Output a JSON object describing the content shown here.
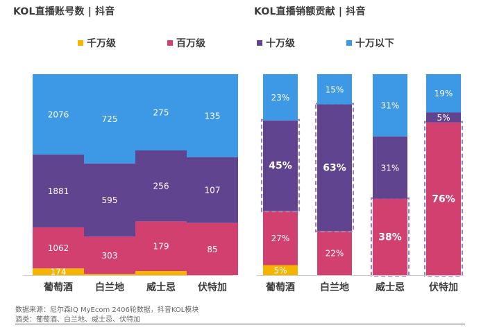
{
  "colors": {
    "qianwan": "#f5b400",
    "baiwan": "#d1406f",
    "shiwan": "#61448f",
    "shiwan_below": "#3d99e6"
  },
  "legend": {
    "left": [
      {
        "label": "千万级",
        "color": "#f5b400"
      },
      {
        "label": "百万级",
        "color": "#d1406f"
      }
    ],
    "right": [
      {
        "label": "十万级",
        "color": "#61448f"
      },
      {
        "label": "十万以下",
        "color": "#3d99e6"
      }
    ]
  },
  "chart_data": [
    {
      "type": "bar",
      "stacked": true,
      "normalized": true,
      "title": "KOL直播账号数 | 抖音",
      "categories": [
        "葡萄酒",
        "白兰地",
        "威士忌",
        "伏特加"
      ],
      "series": [
        {
          "name": "千万级",
          "values": [
            174,
            10,
            15,
            0
          ],
          "labels": [
            "174",
            "",
            "",
            ""
          ]
        },
        {
          "name": "百万级",
          "values": [
            1062,
            303,
            179,
            85
          ],
          "labels": [
            "1062",
            "303",
            "179",
            "85"
          ]
        },
        {
          "name": "十万级",
          "values": [
            1881,
            595,
            256,
            107
          ],
          "labels": [
            "1881",
            "595",
            "256",
            "107"
          ]
        },
        {
          "name": "十万以下",
          "values": [
            2076,
            725,
            275,
            135
          ],
          "labels": [
            "2076",
            "725",
            "275",
            "135"
          ]
        }
      ]
    },
    {
      "type": "bar",
      "stacked": true,
      "normalized": true,
      "title": "KOL直播销额贡献 | 抖音",
      "categories": [
        "葡萄酒",
        "白兰地",
        "威士忌",
        "伏特加"
      ],
      "series": [
        {
          "name": "千万级",
          "values": [
            5,
            0,
            0,
            0
          ],
          "labels": [
            "5%",
            "",
            "",
            ""
          ]
        },
        {
          "name": "百万级",
          "values": [
            27,
            22,
            38,
            76
          ],
          "labels": [
            "27%",
            "22%",
            "38%",
            "76%"
          ]
        },
        {
          "name": "十万级",
          "values": [
            45,
            63,
            31,
            5
          ],
          "labels": [
            "45%",
            "63%",
            "31%",
            "5%"
          ]
        },
        {
          "name": "十万以下",
          "values": [
            23,
            15,
            31,
            19
          ],
          "labels": [
            "23%",
            "15%",
            "31%",
            "19%"
          ]
        }
      ],
      "highlighted": [
        {
          "category": "葡萄酒",
          "series": "十万级"
        },
        {
          "category": "白兰地",
          "series": "十万级"
        },
        {
          "category": "威士忌",
          "series": "百万级"
        },
        {
          "category": "伏特加",
          "series": "百万级"
        }
      ]
    }
  ],
  "footer": {
    "source": "数据来源：尼尔森IQ MyEcom 2406轮数据，抖音KOL模块",
    "categories_note": "酒类：葡萄酒、白兰地、威士忌、伏特加"
  }
}
